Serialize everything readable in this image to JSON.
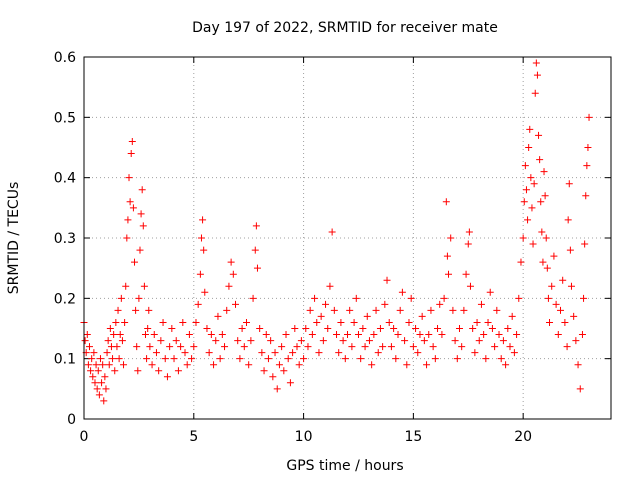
{
  "chart_data": {
    "type": "scatter",
    "title": "Day 197 of 2022, SRMTID for receiver mate",
    "xlabel": "GPS time / hours",
    "ylabel": "SRMTID / TECUs",
    "xlim": [
      0,
      24
    ],
    "ylim": [
      0,
      0.6
    ],
    "xticks": [
      0,
      5,
      10,
      15,
      20
    ],
    "xtick_labels": [
      "0",
      "5",
      "10",
      "15",
      "20"
    ],
    "yticks": [
      0,
      0.1,
      0.2,
      0.3,
      0.4,
      0.5,
      0.6
    ],
    "ytick_labels": [
      "0",
      "0.1",
      "0.2",
      "0.3",
      "0.4",
      "0.5",
      "0.6"
    ],
    "grid": true,
    "marker": "+",
    "color": "#ff0000",
    "series": [
      {
        "name": "SRMTID",
        "points": [
          [
            0.0,
            0.16
          ],
          [
            0.05,
            0.13
          ],
          [
            0.1,
            0.11
          ],
          [
            0.15,
            0.14
          ],
          [
            0.2,
            0.09
          ],
          [
            0.25,
            0.12
          ],
          [
            0.3,
            0.08
          ],
          [
            0.35,
            0.1
          ],
          [
            0.4,
            0.07
          ],
          [
            0.45,
            0.11
          ],
          [
            0.5,
            0.06
          ],
          [
            0.55,
            0.09
          ],
          [
            0.6,
            0.05
          ],
          [
            0.65,
            0.08
          ],
          [
            0.7,
            0.04
          ],
          [
            0.75,
            0.1
          ],
          [
            0.8,
            0.06
          ],
          [
            0.85,
            0.09
          ],
          [
            0.9,
            0.03
          ],
          [
            0.95,
            0.07
          ],
          [
            1.0,
            0.05
          ],
          [
            1.05,
            0.11
          ],
          [
            1.1,
            0.13
          ],
          [
            1.15,
            0.09
          ],
          [
            1.2,
            0.15
          ],
          [
            1.25,
            0.12
          ],
          [
            1.3,
            0.1
          ],
          [
            1.35,
            0.14
          ],
          [
            1.4,
            0.08
          ],
          [
            1.45,
            0.16
          ],
          [
            1.5,
            0.12
          ],
          [
            1.55,
            0.18
          ],
          [
            1.6,
            0.1
          ],
          [
            1.65,
            0.14
          ],
          [
            1.7,
            0.2
          ],
          [
            1.75,
            0.13
          ],
          [
            1.8,
            0.09
          ],
          [
            1.85,
            0.16
          ],
          [
            1.9,
            0.22
          ],
          [
            1.95,
            0.3
          ],
          [
            2.0,
            0.33
          ],
          [
            2.05,
            0.4
          ],
          [
            2.1,
            0.36
          ],
          [
            2.15,
            0.44
          ],
          [
            2.2,
            0.46
          ],
          [
            2.25,
            0.35
          ],
          [
            2.3,
            0.26
          ],
          [
            2.35,
            0.18
          ],
          [
            2.4,
            0.12
          ],
          [
            2.45,
            0.08
          ],
          [
            2.5,
            0.2
          ],
          [
            2.55,
            0.28
          ],
          [
            2.6,
            0.34
          ],
          [
            2.65,
            0.38
          ],
          [
            2.7,
            0.32
          ],
          [
            2.75,
            0.22
          ],
          [
            2.8,
            0.14
          ],
          [
            2.85,
            0.1
          ],
          [
            2.9,
            0.15
          ],
          [
            2.95,
            0.18
          ],
          [
            3.0,
            0.12
          ],
          [
            3.1,
            0.09
          ],
          [
            3.2,
            0.14
          ],
          [
            3.3,
            0.11
          ],
          [
            3.4,
            0.08
          ],
          [
            3.5,
            0.13
          ],
          [
            3.6,
            0.16
          ],
          [
            3.7,
            0.1
          ],
          [
            3.8,
            0.07
          ],
          [
            3.9,
            0.12
          ],
          [
            4.0,
            0.15
          ],
          [
            4.1,
            0.1
          ],
          [
            4.2,
            0.13
          ],
          [
            4.3,
            0.08
          ],
          [
            4.4,
            0.12
          ],
          [
            4.5,
            0.16
          ],
          [
            4.6,
            0.11
          ],
          [
            4.7,
            0.09
          ],
          [
            4.8,
            0.14
          ],
          [
            4.9,
            0.1
          ],
          [
            5.0,
            0.12
          ],
          [
            5.1,
            0.16
          ],
          [
            5.2,
            0.19
          ],
          [
            5.3,
            0.24
          ],
          [
            5.35,
            0.3
          ],
          [
            5.4,
            0.33
          ],
          [
            5.45,
            0.28
          ],
          [
            5.5,
            0.21
          ],
          [
            5.6,
            0.15
          ],
          [
            5.7,
            0.11
          ],
          [
            5.8,
            0.14
          ],
          [
            5.9,
            0.09
          ],
          [
            6.0,
            0.13
          ],
          [
            6.1,
            0.17
          ],
          [
            6.2,
            0.1
          ],
          [
            6.3,
            0.14
          ],
          [
            6.4,
            0.12
          ],
          [
            6.5,
            0.18
          ],
          [
            6.6,
            0.22
          ],
          [
            6.7,
            0.26
          ],
          [
            6.8,
            0.24
          ],
          [
            6.9,
            0.19
          ],
          [
            7.0,
            0.13
          ],
          [
            7.1,
            0.1
          ],
          [
            7.2,
            0.15
          ],
          [
            7.3,
            0.12
          ],
          [
            7.4,
            0.16
          ],
          [
            7.5,
            0.09
          ],
          [
            7.6,
            0.13
          ],
          [
            7.7,
            0.2
          ],
          [
            7.8,
            0.28
          ],
          [
            7.85,
            0.32
          ],
          [
            7.9,
            0.25
          ],
          [
            8.0,
            0.15
          ],
          [
            8.1,
            0.11
          ],
          [
            8.2,
            0.08
          ],
          [
            8.3,
            0.14
          ],
          [
            8.4,
            0.1
          ],
          [
            8.5,
            0.13
          ],
          [
            8.6,
            0.07
          ],
          [
            8.7,
            0.11
          ],
          [
            8.8,
            0.05
          ],
          [
            8.9,
            0.09
          ],
          [
            9.0,
            0.12
          ],
          [
            9.1,
            0.08
          ],
          [
            9.2,
            0.14
          ],
          [
            9.3,
            0.1
          ],
          [
            9.4,
            0.06
          ],
          [
            9.5,
            0.11
          ],
          [
            9.6,
            0.15
          ],
          [
            9.7,
            0.12
          ],
          [
            9.8,
            0.09
          ],
          [
            9.9,
            0.13
          ],
          [
            10.0,
            0.1
          ],
          [
            10.1,
            0.15
          ],
          [
            10.2,
            0.12
          ],
          [
            10.3,
            0.18
          ],
          [
            10.4,
            0.14
          ],
          [
            10.5,
            0.2
          ],
          [
            10.6,
            0.16
          ],
          [
            10.7,
            0.11
          ],
          [
            10.8,
            0.17
          ],
          [
            10.9,
            0.13
          ],
          [
            11.0,
            0.19
          ],
          [
            11.1,
            0.15
          ],
          [
            11.2,
            0.22
          ],
          [
            11.3,
            0.31
          ],
          [
            11.4,
            0.18
          ],
          [
            11.5,
            0.14
          ],
          [
            11.6,
            0.11
          ],
          [
            11.7,
            0.16
          ],
          [
            11.8,
            0.13
          ],
          [
            11.9,
            0.1
          ],
          [
            12.0,
            0.14
          ],
          [
            12.1,
            0.18
          ],
          [
            12.2,
            0.12
          ],
          [
            12.3,
            0.16
          ],
          [
            12.4,
            0.2
          ],
          [
            12.5,
            0.14
          ],
          [
            12.6,
            0.1
          ],
          [
            12.7,
            0.15
          ],
          [
            12.8,
            0.12
          ],
          [
            12.9,
            0.17
          ],
          [
            13.0,
            0.13
          ],
          [
            13.1,
            0.09
          ],
          [
            13.2,
            0.14
          ],
          [
            13.3,
            0.18
          ],
          [
            13.4,
            0.11
          ],
          [
            13.5,
            0.15
          ],
          [
            13.6,
            0.12
          ],
          [
            13.7,
            0.19
          ],
          [
            13.8,
            0.23
          ],
          [
            13.9,
            0.16
          ],
          [
            14.0,
            0.12
          ],
          [
            14.1,
            0.15
          ],
          [
            14.2,
            0.1
          ],
          [
            14.3,
            0.14
          ],
          [
            14.4,
            0.18
          ],
          [
            14.5,
            0.21
          ],
          [
            14.6,
            0.13
          ],
          [
            14.7,
            0.09
          ],
          [
            14.8,
            0.16
          ],
          [
            14.9,
            0.2
          ],
          [
            15.0,
            0.12
          ],
          [
            15.1,
            0.15
          ],
          [
            15.2,
            0.11
          ],
          [
            15.3,
            0.14
          ],
          [
            15.4,
            0.17
          ],
          [
            15.5,
            0.13
          ],
          [
            15.6,
            0.09
          ],
          [
            15.7,
            0.14
          ],
          [
            15.8,
            0.18
          ],
          [
            15.9,
            0.12
          ],
          [
            16.0,
            0.1
          ],
          [
            16.1,
            0.15
          ],
          [
            16.2,
            0.19
          ],
          [
            16.3,
            0.14
          ],
          [
            16.4,
            0.2
          ],
          [
            16.5,
            0.36
          ],
          [
            16.55,
            0.27
          ],
          [
            16.6,
            0.24
          ],
          [
            16.7,
            0.3
          ],
          [
            16.8,
            0.18
          ],
          [
            16.9,
            0.13
          ],
          [
            17.0,
            0.1
          ],
          [
            17.1,
            0.15
          ],
          [
            17.2,
            0.12
          ],
          [
            17.3,
            0.18
          ],
          [
            17.4,
            0.24
          ],
          [
            17.5,
            0.29
          ],
          [
            17.55,
            0.31
          ],
          [
            17.6,
            0.22
          ],
          [
            17.7,
            0.15
          ],
          [
            17.8,
            0.11
          ],
          [
            17.9,
            0.16
          ],
          [
            18.0,
            0.13
          ],
          [
            18.1,
            0.19
          ],
          [
            18.2,
            0.14
          ],
          [
            18.3,
            0.1
          ],
          [
            18.4,
            0.16
          ],
          [
            18.5,
            0.21
          ],
          [
            18.6,
            0.15
          ],
          [
            18.7,
            0.12
          ],
          [
            18.8,
            0.18
          ],
          [
            18.9,
            0.14
          ],
          [
            19.0,
            0.1
          ],
          [
            19.1,
            0.13
          ],
          [
            19.2,
            0.09
          ],
          [
            19.3,
            0.15
          ],
          [
            19.4,
            0.12
          ],
          [
            19.5,
            0.17
          ],
          [
            19.6,
            0.11
          ],
          [
            19.7,
            0.14
          ],
          [
            19.8,
            0.2
          ],
          [
            19.9,
            0.26
          ],
          [
            20.0,
            0.3
          ],
          [
            20.05,
            0.36
          ],
          [
            20.1,
            0.42
          ],
          [
            20.15,
            0.38
          ],
          [
            20.2,
            0.33
          ],
          [
            20.25,
            0.45
          ],
          [
            20.3,
            0.48
          ],
          [
            20.35,
            0.4
          ],
          [
            20.4,
            0.35
          ],
          [
            20.45,
            0.29
          ],
          [
            20.5,
            0.39
          ],
          [
            20.55,
            0.54
          ],
          [
            20.6,
            0.59
          ],
          [
            20.65,
            0.57
          ],
          [
            20.7,
            0.47
          ],
          [
            20.75,
            0.43
          ],
          [
            20.8,
            0.36
          ],
          [
            20.85,
            0.31
          ],
          [
            20.9,
            0.26
          ],
          [
            20.95,
            0.41
          ],
          [
            21.0,
            0.37
          ],
          [
            21.05,
            0.3
          ],
          [
            21.1,
            0.25
          ],
          [
            21.15,
            0.2
          ],
          [
            21.2,
            0.16
          ],
          [
            21.3,
            0.22
          ],
          [
            21.4,
            0.27
          ],
          [
            21.5,
            0.19
          ],
          [
            21.6,
            0.14
          ],
          [
            21.7,
            0.18
          ],
          [
            21.8,
            0.23
          ],
          [
            21.9,
            0.16
          ],
          [
            22.0,
            0.12
          ],
          [
            22.05,
            0.33
          ],
          [
            22.1,
            0.39
          ],
          [
            22.15,
            0.28
          ],
          [
            22.2,
            0.22
          ],
          [
            22.3,
            0.17
          ],
          [
            22.4,
            0.13
          ],
          [
            22.5,
            0.09
          ],
          [
            22.6,
            0.05
          ],
          [
            22.7,
            0.14
          ],
          [
            22.75,
            0.2
          ],
          [
            22.8,
            0.29
          ],
          [
            22.85,
            0.37
          ],
          [
            22.9,
            0.42
          ],
          [
            22.95,
            0.45
          ],
          [
            23.0,
            0.5
          ]
        ]
      }
    ]
  }
}
